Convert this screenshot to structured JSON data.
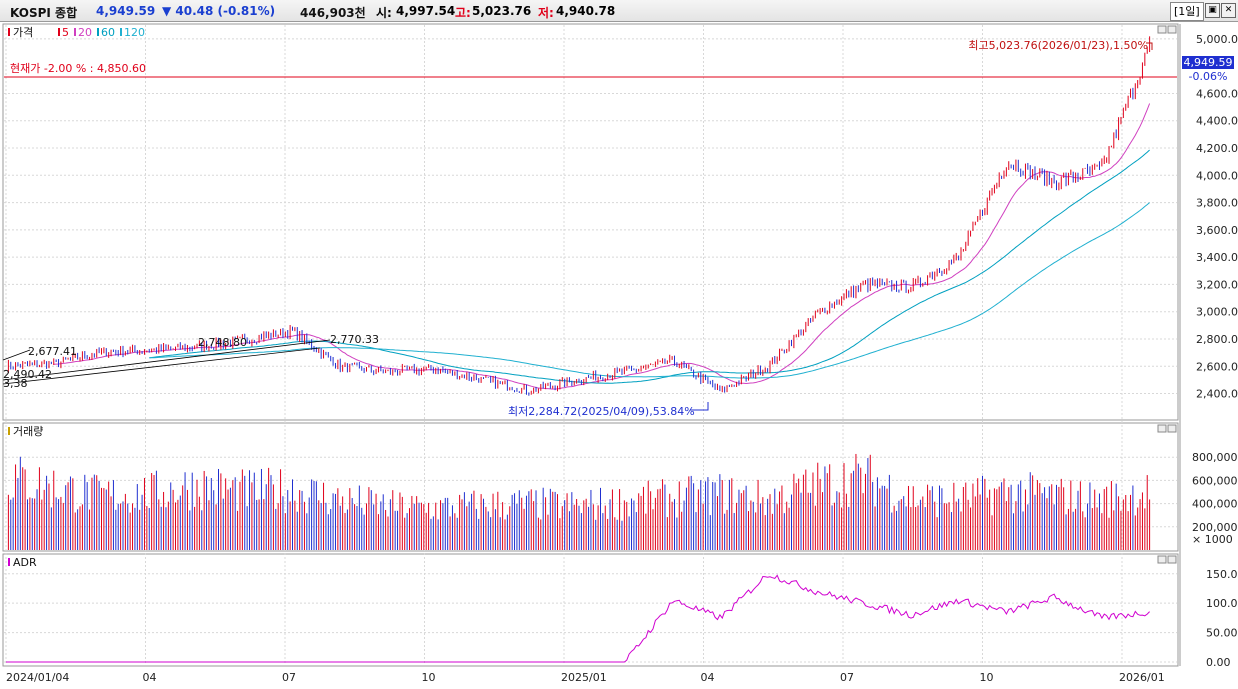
{
  "header": {
    "name": "KOSPI 종합",
    "price": "4,949.59",
    "change": "▼ 40.48 (-0.81%)",
    "volume": "446,903천",
    "open_label": "시:",
    "open": "4,997.54",
    "high_label": "고:",
    "high": "5,023.76",
    "low_label": "저:",
    "low": "4,940.78",
    "period": "[1일]"
  },
  "legend": {
    "price": "가격",
    "ma": [
      "5",
      "20",
      "60",
      "120"
    ],
    "volume": "거래량",
    "adr": "ADR"
  },
  "annotations": {
    "current_line": "현재가 -2.00 % : 4,850.60",
    "high_marker": "최고5,023.76(2026/01/23),1.50%",
    "low_marker": "최저2,284.72(2025/04/09),53.84%",
    "price_tag": "4,949.59",
    "change_tag": "-0.06%",
    "trend_labels": [
      "2,677.41",
      "2,490.42",
      "3,38",
      "2,748.80",
      "2,770.33"
    ]
  },
  "colors": {
    "up": "#e0001a",
    "down": "#1f2fd0",
    "ma5": "#e0001a",
    "ma20": "#d040c0",
    "ma60": "#00a0c0",
    "ma120": "#20b0d0",
    "adr": "#d000d0"
  },
  "chart_data": [
    {
      "type": "line",
      "name": "price",
      "y_ticks": [
        "5,000.00",
        "4,600.00",
        "4,400.00",
        "4,200.00",
        "4,000.00",
        "3,800.00",
        "3,600.00",
        "3,400.00",
        "3,200.00",
        "3,000.00",
        "2,800.00",
        "2,600.00",
        "2,400.00"
      ],
      "ylim": [
        2250,
        5080
      ],
      "x": [
        "2024/01/04",
        "2024/02",
        "2024/03",
        "2024/04",
        "2024/05",
        "2024/06",
        "2024/07",
        "2024/08",
        "2024/09",
        "2024/10",
        "2024/11",
        "2024/12",
        "2025/01",
        "2025/02",
        "2025/03",
        "2025/04",
        "2025/05",
        "2025/06",
        "2025/07",
        "2025/08",
        "2025/09",
        "2025/10",
        "2025/11",
        "2025/12",
        "2026/01"
      ],
      "values": [
        2600,
        2620,
        2700,
        2720,
        2740,
        2790,
        2860,
        2600,
        2560,
        2580,
        2500,
        2420,
        2500,
        2560,
        2640,
        2420,
        2600,
        2980,
        3200,
        3180,
        3400,
        4100,
        3950,
        4050,
        4950
      ]
    },
    {
      "type": "bar",
      "name": "volume",
      "y_ticks": [
        "800,000",
        "600,000",
        "400,000",
        "200,000"
      ],
      "unit_label": "× 1000",
      "ylim": [
        0,
        1000000
      ],
      "x": [
        "2024/01",
        "2024/02",
        "2024/03",
        "2024/04",
        "2024/05",
        "2024/06",
        "2024/07",
        "2024/08",
        "2024/09",
        "2024/10",
        "2024/11",
        "2024/12",
        "2025/01",
        "2025/02",
        "2025/03",
        "2025/04",
        "2025/05",
        "2025/06",
        "2025/07",
        "2025/08",
        "2025/09",
        "2025/10",
        "2025/11",
        "2025/12",
        "2026/01"
      ],
      "values": [
        700000,
        600000,
        520000,
        540000,
        620000,
        560000,
        580000,
        480000,
        420000,
        400000,
        430000,
        440000,
        420000,
        460000,
        500000,
        540000,
        480000,
        620000,
        700000,
        500000,
        480000,
        560000,
        520000,
        480000,
        560000
      ]
    },
    {
      "type": "line",
      "name": "ADR",
      "y_ticks": [
        "150.00",
        "100.00",
        "50.00",
        "0.00"
      ],
      "ylim": [
        0,
        170
      ],
      "x": [
        "2024/01",
        "2024/02",
        "2024/03",
        "2024/04",
        "2024/05",
        "2024/06",
        "2024/07",
        "2024/08",
        "2024/09",
        "2024/10",
        "2024/11",
        "2024/12",
        "2025/01",
        "2025/02",
        "2025/03",
        "2025/04",
        "2025/05",
        "2025/06",
        "2025/07",
        "2025/08",
        "2025/09",
        "2025/10",
        "2025/11",
        "2025/12",
        "2026/01"
      ],
      "values": [
        0,
        0,
        0,
        0,
        0,
        0,
        0,
        0,
        0,
        0,
        0,
        0,
        0,
        0,
        105,
        75,
        150,
        120,
        100,
        80,
        105,
        85,
        110,
        75,
        85
      ]
    }
  ],
  "x_axis": {
    "labels": [
      "2024/01/04",
      "04",
      "07",
      "10",
      "2025/01",
      "04",
      "07",
      "10",
      "2026/01"
    ]
  }
}
